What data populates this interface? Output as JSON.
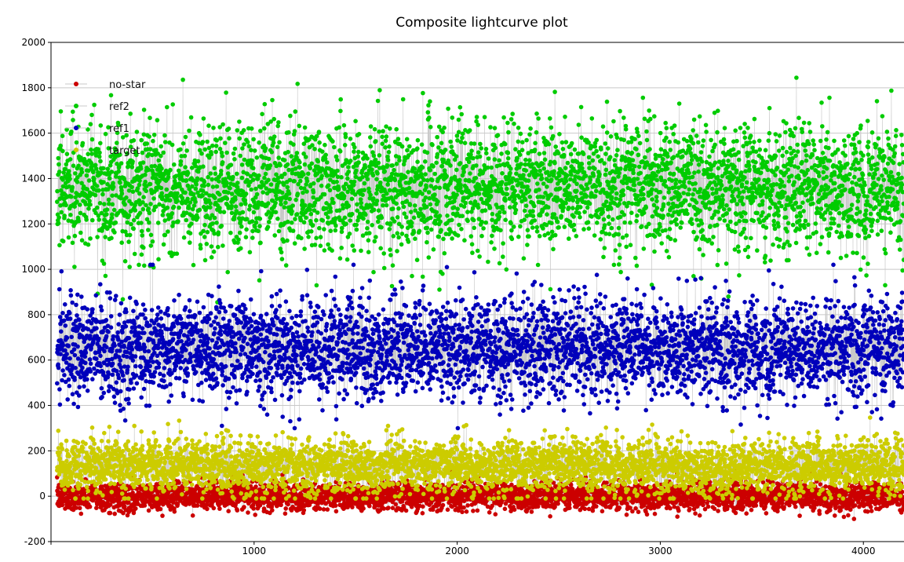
{
  "chart_data": {
    "type": "scatter",
    "title": "Composite lightcurve plot",
    "xlabel": "",
    "ylabel": "",
    "xlim": [
      0,
      4200
    ],
    "ylim": [
      -200,
      2000
    ],
    "x_ticks": [
      1000,
      2000,
      3000,
      4000
    ],
    "y_ticks": [
      -200,
      0,
      200,
      400,
      600,
      800,
      1000,
      1200,
      1400,
      1600,
      1800,
      2000
    ],
    "grid": true,
    "legend_position": "top-left",
    "connector_color": "#c8c8c8",
    "n_points_per_series": 4100,
    "series": [
      {
        "name": "no-star",
        "color": "#cc0000",
        "mean": 0,
        "spread": 30,
        "min": -100,
        "max": 330
      },
      {
        "name": "ref2",
        "color": "#00cc00",
        "mean": 1360,
        "spread": 140,
        "min": 850,
        "max": 1925
      },
      {
        "name": "ref1",
        "color": "#0000bb",
        "mean": 650,
        "spread": 110,
        "min": 300,
        "max": 1020
      },
      {
        "name": "target",
        "color": "#cccc00",
        "mean": 130,
        "spread": 60,
        "min": -10,
        "max": 370
      }
    ]
  }
}
